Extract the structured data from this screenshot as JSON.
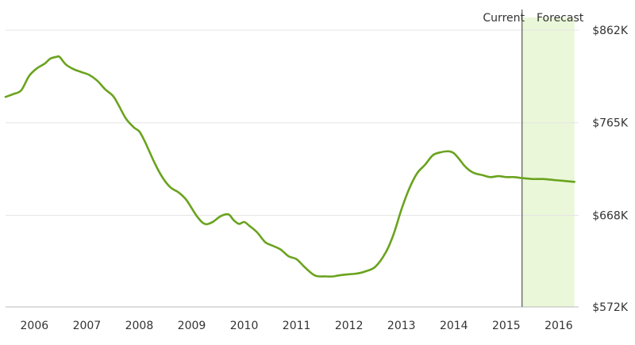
{
  "header": {
    "current_label": "Current",
    "forecast_label": "Forecast"
  },
  "colors": {
    "line": "#6aa31e",
    "forecast_band": "#eaf7d9",
    "grid": "#e6e6e6",
    "divider": "#6d6d6d",
    "text": "#333333"
  },
  "chart_data": {
    "type": "line",
    "title": "",
    "xlabel": "",
    "ylabel": "",
    "xlim": [
      2005.45,
      2016.38
    ],
    "ylim": [
      572,
      862
    ],
    "y_ticks": [
      {
        "value": 862,
        "label": "$862K"
      },
      {
        "value": 765,
        "label": "$765K"
      },
      {
        "value": 668,
        "label": "$668K"
      },
      {
        "value": 572,
        "label": "$572K"
      }
    ],
    "x_ticks": [
      {
        "value": 2006,
        "label": "2006"
      },
      {
        "value": 2007,
        "label": "2007"
      },
      {
        "value": 2008,
        "label": "2008"
      },
      {
        "value": 2009,
        "label": "2009"
      },
      {
        "value": 2010,
        "label": "2010"
      },
      {
        "value": 2011,
        "label": "2011"
      },
      {
        "value": 2012,
        "label": "2012"
      },
      {
        "value": 2013,
        "label": "2013"
      },
      {
        "value": 2014,
        "label": "2014"
      },
      {
        "value": 2015,
        "label": "2015"
      },
      {
        "value": 2016,
        "label": "2016"
      }
    ],
    "grid": true,
    "forecast_start": 2015.3,
    "forecast_end": 2016.3,
    "series": [
      {
        "x": [
          2005.45,
          2005.6,
          2005.75,
          2005.9,
          2006.05,
          2006.2,
          2006.3,
          2006.42,
          2006.48,
          2006.6,
          2006.75,
          2006.9,
          2007.05,
          2007.2,
          2007.35,
          2007.5,
          2007.6,
          2007.75,
          2007.9,
          2008.0,
          2008.1,
          2008.3,
          2008.45,
          2008.6,
          2008.75,
          2008.9,
          2009.1,
          2009.25,
          2009.4,
          2009.55,
          2009.7,
          2009.8,
          2009.9,
          2010.0,
          2010.1,
          2010.25,
          2010.4,
          2010.55,
          2010.7,
          2010.85,
          2011.0,
          2011.15,
          2011.35,
          2011.55,
          2011.7,
          2011.8,
          2011.95,
          2012.15,
          2012.3,
          2012.5,
          2012.7,
          2012.85,
          2013.0,
          2013.15,
          2013.3,
          2013.45,
          2013.6,
          2013.75,
          2013.9,
          2014.0,
          2014.1,
          2014.2,
          2014.3,
          2014.4,
          2014.55,
          2014.7,
          2014.85,
          2015.0,
          2015.15,
          2015.3,
          2015.5,
          2015.7,
          2015.9,
          2016.1,
          2016.3
        ],
        "values": [
          792,
          795,
          799,
          814,
          822,
          827,
          832,
          834,
          834,
          826,
          821,
          818,
          815,
          809,
          800,
          793,
          784,
          769,
          760,
          756,
          746,
          722,
          707,
          697,
          692,
          684,
          667,
          659,
          661,
          667,
          669,
          663,
          659,
          661,
          657,
          650,
          640,
          636,
          632,
          625,
          622,
          614,
          605,
          604,
          604,
          605,
          606,
          607,
          609,
          614,
          629,
          648,
          674,
          696,
          712,
          721,
          731,
          734,
          735,
          733,
          727,
          720,
          715,
          712,
          710,
          708,
          709,
          708,
          708,
          707,
          706,
          706,
          705,
          704,
          703
        ]
      }
    ]
  }
}
